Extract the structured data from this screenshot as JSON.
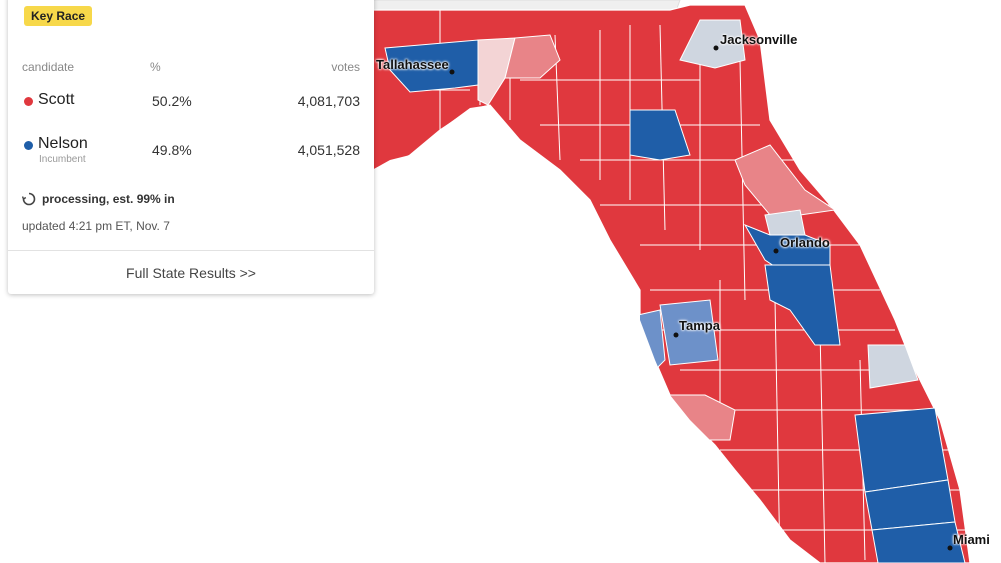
{
  "card": {
    "badge": "Key Race",
    "headers": {
      "candidate": "candidate",
      "pct": "%",
      "votes": "votes"
    },
    "candidates": [
      {
        "name": "Scott",
        "sub": "",
        "pct": "50.2%",
        "votes": "4,081,703",
        "color": "#e0383e"
      },
      {
        "name": "Nelson",
        "sub": "Incumbent",
        "pct": "49.8%",
        "votes": "4,051,528",
        "color": "#1f5ea8"
      }
    ],
    "status": "processing, est. 99% in",
    "updated": "updated 4:21 pm ET, Nov. 7",
    "full_results": "Full State Results >>"
  },
  "map": {
    "cities": [
      "Tallahassee",
      "Jacksonville",
      "Orlando",
      "Tampa",
      "Miami"
    ],
    "colors": {
      "strong_rep": "#e0383e",
      "lean_rep": "#e88488",
      "light_rep": "#f3d4d5",
      "strong_dem": "#1f5ea8",
      "lean_dem": "#6d91c9",
      "toss": "#cfd6e0",
      "border": "#ffffff",
      "water": "#ffffff"
    }
  }
}
